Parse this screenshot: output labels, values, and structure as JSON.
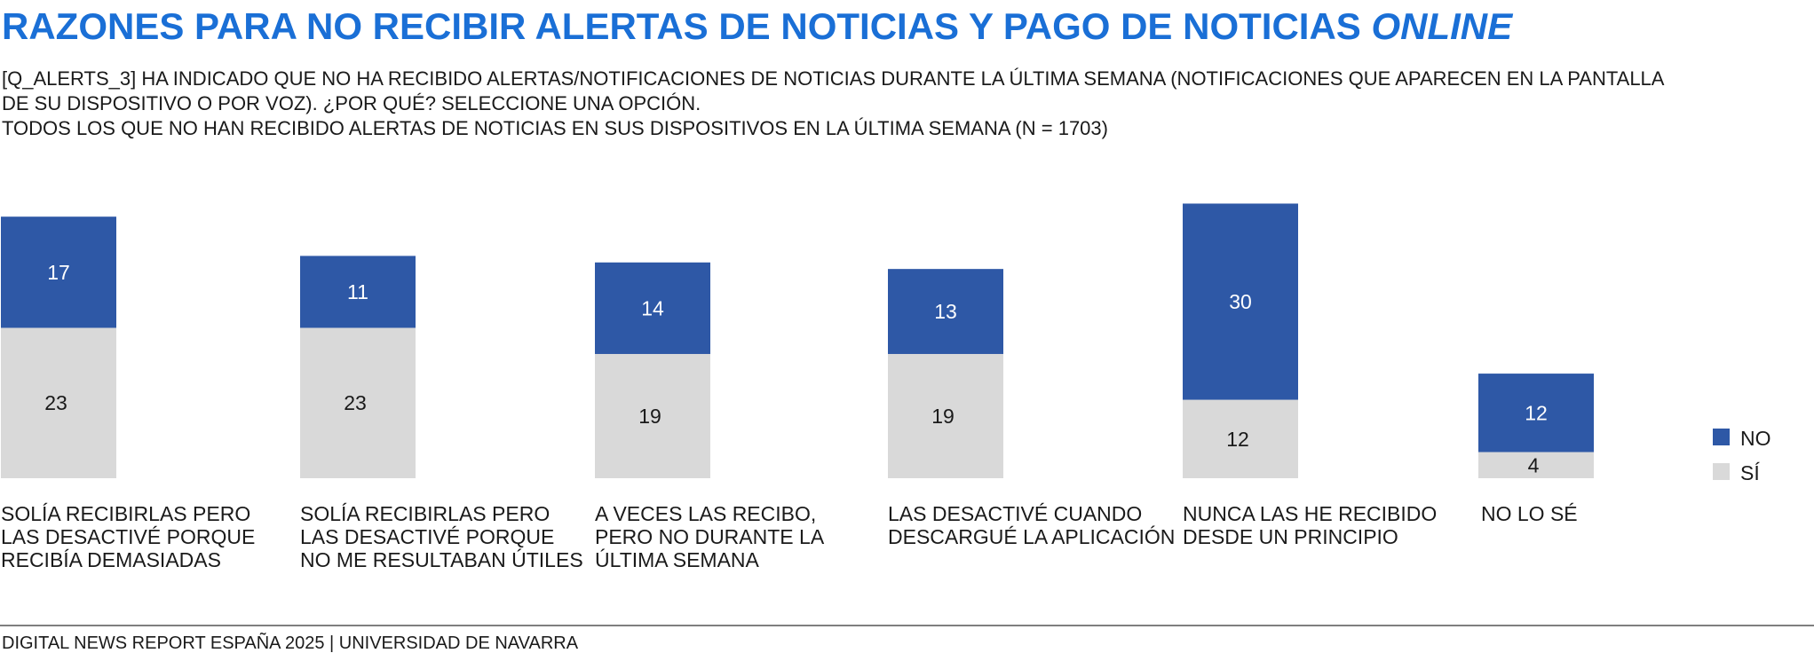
{
  "title": {
    "main": "RAZONES PARA NO RECIBIR ALERTAS DE NOTICIAS Y PAGO DE NOTICIAS",
    "italic": "ONLINE"
  },
  "subtitle": {
    "line1": "[Q_ALERTS_3] HA INDICADO QUE NO HA RECIBIDO ALERTAS/NOTIFICACIONES DE NOTICIAS DURANTE LA ÚLTIMA SEMANA (NOTIFICACIONES QUE APARECEN EN LA PANTALLA",
    "line2": "DE SU DISPOSITIVO O POR VOZ). ¿POR QUÉ? SELECCIONE UNA OPCIÓN.",
    "line3": "TODOS LOS QUE NO HAN RECIBIDO ALERTAS DE NOTICIAS EN SUS DISPOSITIVOS EN LA ÚLTIMA SEMANA (N = 1703)"
  },
  "colors": {
    "title": "#1a6fd6",
    "no": "#2e58a6",
    "si": "#d9d9d9"
  },
  "chart_data": {
    "type": "bar",
    "stacked": true,
    "categories": [
      [
        "SOLÍA RECIBIRLAS PERO",
        "LAS DESACTIVÉ PORQUE",
        "RECIBÍA DEMASIADAS"
      ],
      [
        "SOLÍA RECIBIRLAS PERO",
        "LAS DESACTIVÉ PORQUE",
        "NO ME RESULTABAN ÚTILES"
      ],
      [
        "A VECES LAS RECIBO,",
        "PERO NO DURANTE LA",
        "ÚLTIMA SEMANA"
      ],
      [
        "LAS DESACTIVÉ CUANDO",
        "DESCARGUÉ LA APLICACIÓN"
      ],
      [
        "NUNCA LAS HE RECIBIDO",
        "DESDE UN PRINCIPIO"
      ],
      [
        "NO LO SÉ"
      ]
    ],
    "series": [
      {
        "name": "SÍ",
        "values": [
          23,
          23,
          19,
          19,
          12,
          4
        ]
      },
      {
        "name": "NO",
        "values": [
          17,
          11,
          14,
          13,
          30,
          12
        ]
      }
    ],
    "legend_position": "right",
    "grid": false
  },
  "legend": {
    "no_label": "NO",
    "si_label": "SÍ"
  },
  "footer": "DIGITAL NEWS REPORT ESPAÑA 2025 | UNIVERSIDAD DE NAVARRA"
}
